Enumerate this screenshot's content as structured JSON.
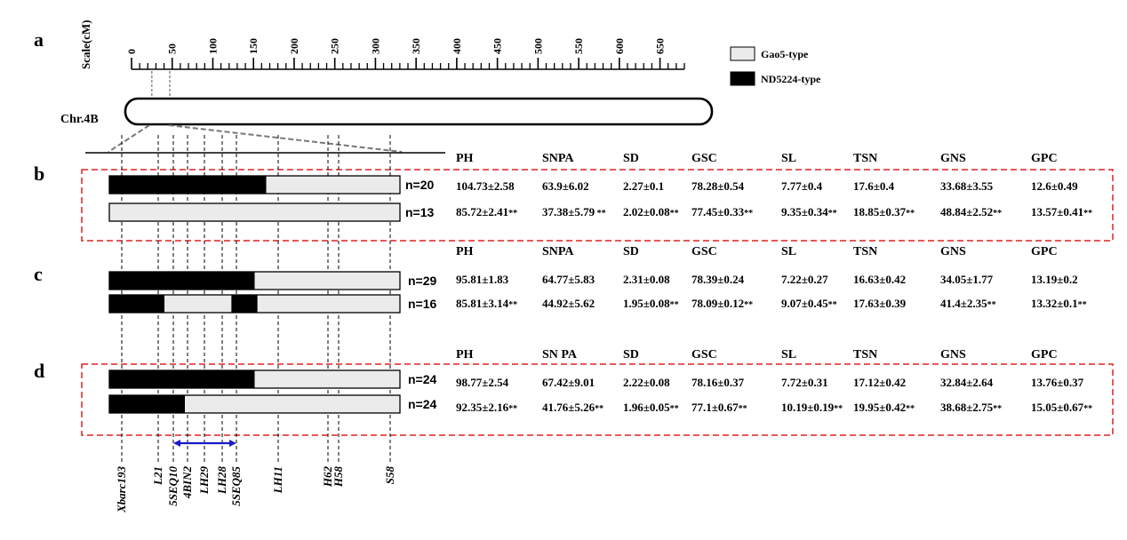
{
  "panels": [
    "a",
    "b",
    "c",
    "d"
  ],
  "scale": {
    "title": "Scale(cM)",
    "max": 680,
    "ticks": [
      0,
      50,
      100,
      150,
      200,
      250,
      300,
      350,
      400,
      450,
      500,
      550,
      600,
      650
    ],
    "minor_step": 10,
    "zoom_region_cm": [
      25,
      47
    ]
  },
  "chromosome": {
    "label": "Chr.4B"
  },
  "legend": [
    {
      "label": "Gao5-type",
      "color": "#ebebeb"
    },
    {
      "label": "ND5224-type",
      "color": "#000000"
    }
  ],
  "markers": [
    "Xbarc193",
    "L21",
    "5SEQ10",
    "4BIN2",
    "LH29",
    "LH28",
    "5SEQ85",
    "LH11",
    "H62",
    "H58",
    "S58"
  ],
  "highlight_interval": {
    "from": "5SEQ10",
    "to": "5SEQ85",
    "color": "#1a1ac8"
  },
  "colors": {
    "box_border": "#e02020",
    "gao5": "#ebebeb",
    "nd5224": "#000000"
  },
  "genotype_rows": [
    {
      "panel": "b",
      "n": "n=20",
      "segments": [
        {
          "type": "nd5224",
          "from": 0,
          "to": 0.54
        },
        {
          "type": "gao5",
          "from": 0.54,
          "to": 1
        }
      ]
    },
    {
      "panel": "b",
      "n": "n=13",
      "segments": [
        {
          "type": "gao5",
          "from": 0,
          "to": 1
        }
      ]
    },
    {
      "panel": "c",
      "n": "n=29",
      "segments": [
        {
          "type": "nd5224",
          "from": 0,
          "to": 0.5
        },
        {
          "type": "gao5",
          "from": 0.5,
          "to": 1
        }
      ]
    },
    {
      "panel": "c",
      "n": "n=16",
      "segments": [
        {
          "type": "nd5224",
          "from": 0,
          "to": 0.19
        },
        {
          "type": "gao5",
          "from": 0.19,
          "to": 0.42
        },
        {
          "type": "nd5224",
          "from": 0.42,
          "to": 0.51
        },
        {
          "type": "gao5",
          "from": 0.51,
          "to": 1
        }
      ]
    },
    {
      "panel": "d",
      "n": "n=24",
      "segments": [
        {
          "type": "nd5224",
          "from": 0,
          "to": 0.5
        },
        {
          "type": "gao5",
          "from": 0.5,
          "to": 1
        }
      ]
    },
    {
      "panel": "d",
      "n": "n=24",
      "segments": [
        {
          "type": "nd5224",
          "from": 0,
          "to": 0.26
        },
        {
          "type": "gao5",
          "from": 0.26,
          "to": 1
        }
      ]
    }
  ],
  "trait_tables": [
    {
      "panel": "b",
      "headers": [
        "PH",
        "SNPA",
        "SD",
        "GSC",
        "SL",
        "TSN",
        "GNS",
        "GPC"
      ],
      "rows": [
        [
          {
            "v": "104.73±2.58",
            "s": ""
          },
          {
            "v": "63.9±6.02",
            "s": ""
          },
          {
            "v": "2.27±0.1",
            "s": ""
          },
          {
            "v": "78.28±0.54",
            "s": ""
          },
          {
            "v": "7.77±0.4",
            "s": ""
          },
          {
            "v": "17.6±0.4",
            "s": ""
          },
          {
            "v": "33.68±3.55",
            "s": ""
          },
          {
            "v": "12.6±0.49",
            "s": ""
          }
        ],
        [
          {
            "v": "85.72±2.41",
            "s": "**"
          },
          {
            "v": "37.38±5.79",
            "s": " **"
          },
          {
            "v": "2.02±0.08",
            "s": "**"
          },
          {
            "v": "77.45±0.33",
            "s": "**"
          },
          {
            "v": "9.35±0.34",
            "s": "**"
          },
          {
            "v": "18.85±0.37",
            "s": "**"
          },
          {
            "v": "48.84±2.52",
            "s": "**"
          },
          {
            "v": "13.57±0.41",
            "s": "**"
          }
        ]
      ]
    },
    {
      "panel": "c",
      "headers": [
        "PH",
        "SNPA",
        "SD",
        "GSC",
        "SL",
        "TSN",
        "GNS",
        "GPC"
      ],
      "rows": [
        [
          {
            "v": "95.81±1.83",
            "s": ""
          },
          {
            "v": "64.77±5.83",
            "s": ""
          },
          {
            "v": "2.31±0.08",
            "s": ""
          },
          {
            "v": "78.39±0.24",
            "s": ""
          },
          {
            "v": "7.22±0.27",
            "s": ""
          },
          {
            "v": "16.63±0.42",
            "s": ""
          },
          {
            "v": "34.05±1.77",
            "s": ""
          },
          {
            "v": "13.19±0.2",
            "s": ""
          }
        ],
        [
          {
            "v": "85.81±3.14",
            "s": "**"
          },
          {
            "v": "44.92±5.62",
            "s": ""
          },
          {
            "v": "1.95±0.08",
            "s": "**"
          },
          {
            "v": "78.09±0.12",
            "s": "**"
          },
          {
            "v": "9.07±0.45",
            "s": "**"
          },
          {
            "v": "17.63±0.39",
            "s": ""
          },
          {
            "v": "41.4±2.35",
            "s": "**"
          },
          {
            "v": "13.32±0.1",
            "s": "**"
          }
        ]
      ]
    },
    {
      "panel": "d",
      "headers": [
        "PH",
        "SN PA",
        "SD",
        "GSC",
        "SL",
        "TSN",
        "GNS",
        "GPC"
      ],
      "rows": [
        [
          {
            "v": "98.77±2.54",
            "s": ""
          },
          {
            "v": "67.42±9.01",
            "s": ""
          },
          {
            "v": "2.22±0.08",
            "s": ""
          },
          {
            "v": "78.16±0.37",
            "s": ""
          },
          {
            "v": "7.72±0.31",
            "s": ""
          },
          {
            "v": "17.12±0.42",
            "s": ""
          },
          {
            "v": "32.84±2.64",
            "s": ""
          },
          {
            "v": "13.76±0.37",
            "s": ""
          }
        ],
        [
          {
            "v": "92.35±2.16",
            "s": "**"
          },
          {
            "v": "41.76±5.26",
            "s": "**"
          },
          {
            "v": "1.96±0.05",
            "s": "**"
          },
          {
            "v": "77.1±0.67",
            "s": "**"
          },
          {
            "v": "10.19±0.19",
            "s": "**"
          },
          {
            "v": "19.95±0.42",
            "s": "**"
          },
          {
            "v": "38.68±2.75",
            "s": "**"
          },
          {
            "v": "15.05±0.67",
            "s": "**"
          }
        ]
      ]
    }
  ]
}
